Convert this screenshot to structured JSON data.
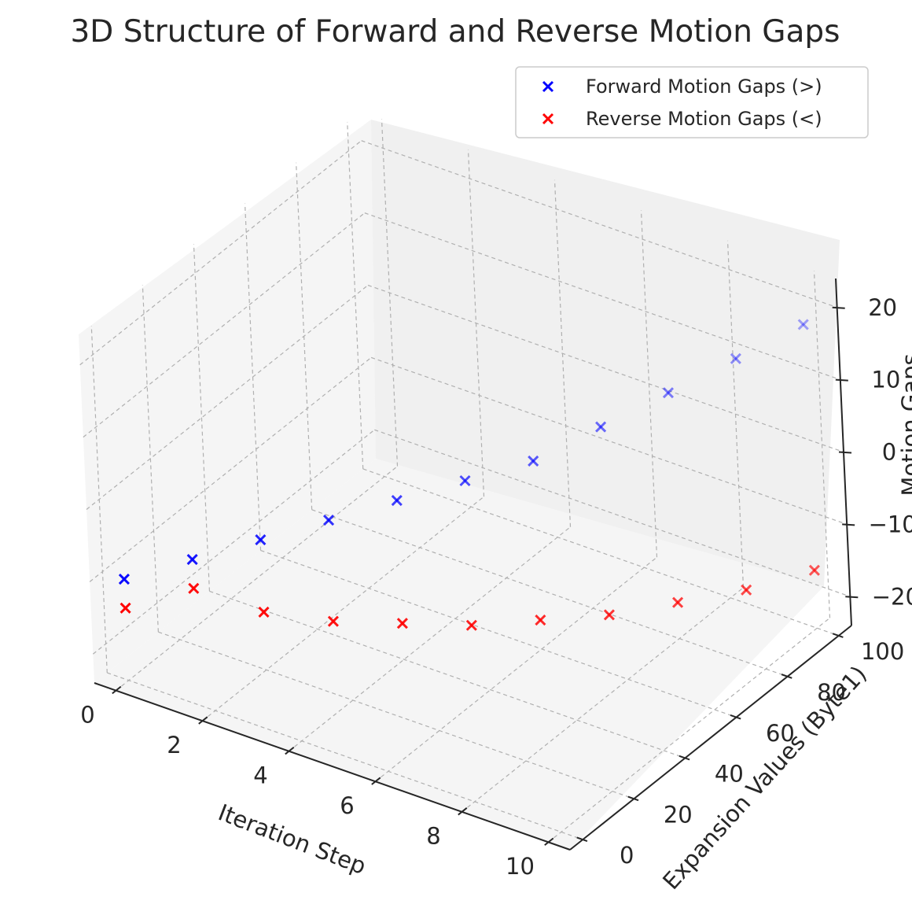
{
  "chart_data": {
    "type": "scatter",
    "title": "3D Structure of Forward and Reverse Motion Gaps",
    "xlabel": "Iteration Step",
    "ylabel": "Expansion Values (Byte1)",
    "zlabel": "Motion Gaps",
    "x_ticks": [
      "0",
      "2",
      "4",
      "6",
      "8",
      "10"
    ],
    "y_ticks": [
      "0",
      "20",
      "40",
      "60",
      "80",
      "100"
    ],
    "z_ticks": [
      "−20",
      "−10",
      "0",
      "10",
      "20"
    ],
    "legend_position": "top-right",
    "series": [
      {
        "name": "Forward Motion Gaps (>)",
        "color": "#0000ff",
        "marker": "x",
        "x": [
          0,
          1,
          2,
          3,
          4,
          5,
          6,
          7,
          8,
          9,
          10
        ],
        "y": [
          0,
          10,
          20,
          30,
          40,
          50,
          60,
          70,
          80,
          90,
          100
        ],
        "z": [
          -10,
          -8,
          -6,
          -4,
          -2,
          0,
          2,
          6,
          10,
          14,
          18
        ]
      },
      {
        "name": "Reverse Motion Gaps (<)",
        "color": "#ff0000",
        "marker": "x",
        "x": [
          0,
          1,
          2,
          3,
          4,
          5,
          6,
          7,
          8,
          9,
          10
        ],
        "y": [
          0,
          10,
          20,
          30,
          40,
          50,
          60,
          70,
          80,
          90,
          100
        ],
        "z": [
          -14,
          -12,
          -16,
          -18,
          -19,
          -20,
          -20,
          -20,
          -19,
          -18,
          -16
        ]
      }
    ]
  }
}
